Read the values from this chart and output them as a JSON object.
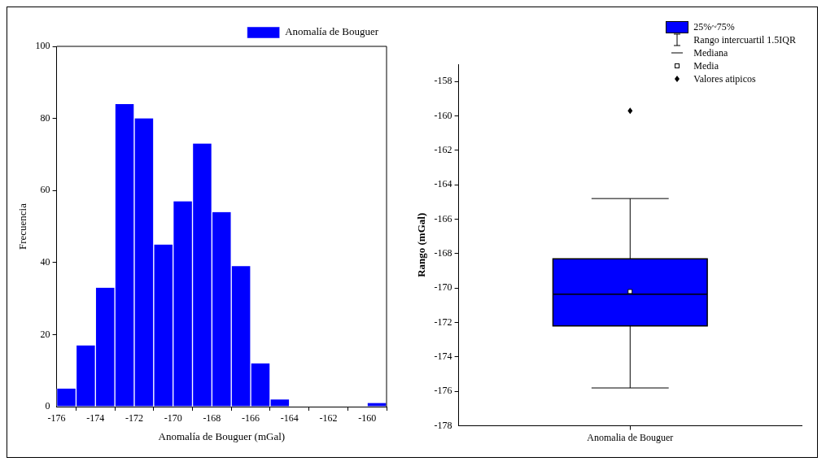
{
  "chart_data": [
    {
      "type": "histogram",
      "xlabel": "Anomalía de Bouguer (mGal)",
      "ylabel": "Frecuencia",
      "bins": [
        -176,
        -175,
        -174,
        -173,
        -172,
        -171,
        -170,
        -169,
        -168,
        -167,
        -166,
        -165,
        -164,
        -163,
        -162,
        -161,
        -160,
        -159
      ],
      "series": [
        {
          "name": "Anomalía de Bouguer",
          "color": "#0000ff",
          "values": [
            5,
            17,
            33,
            84,
            80,
            45,
            57,
            73,
            54,
            39,
            12,
            2,
            0,
            0,
            0,
            0,
            1
          ]
        }
      ],
      "xlim": [
        -176,
        -159
      ],
      "xticks": [
        -176,
        -174,
        -172,
        -170,
        -168,
        -166,
        -164,
        -162,
        -160
      ],
      "ylim": [
        0,
        100
      ],
      "yticks": [
        0,
        20,
        40,
        60,
        80,
        100
      ],
      "grid": false,
      "legend": "top right"
    },
    {
      "type": "box",
      "ylabel": "Rango (mGal)",
      "categories": [
        "Anomalia de Bouguer"
      ],
      "series": [
        {
          "name": "25%~75%",
          "color": "#0000ff",
          "boxes": [
            {
              "low": -175.8,
              "q1": -172.2,
              "median": -170.35,
              "q3": -168.3,
              "high": -164.8,
              "mean": -170.2,
              "outliers": [
                -159.7
              ]
            }
          ]
        }
      ],
      "annotations": [
        "Rango intercuartil 1.5IQR",
        "Mediana",
        "Media",
        "Valores atipicos"
      ],
      "ylim": [
        -178,
        -157
      ],
      "yticks": [
        -178,
        -176,
        -174,
        -172,
        -170,
        -168,
        -166,
        -164,
        -162,
        -160,
        -158
      ],
      "grid": false,
      "legend": "top right"
    }
  ]
}
